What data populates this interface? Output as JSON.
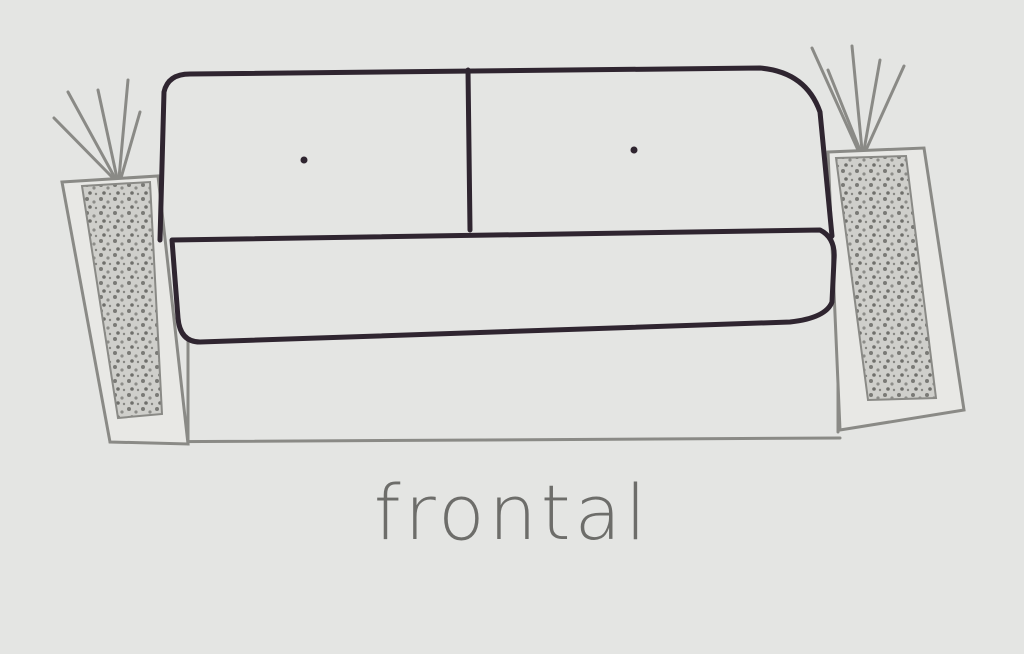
{
  "caption": "frontal",
  "colors": {
    "paper": "#e4e5e3",
    "ink_outline": "#2f2530",
    "pencil": "#8a8a86",
    "gravel": "#6e6e6a"
  },
  "scene": {
    "subject": "sofa",
    "planters": 2,
    "cushion_buttons": 2
  }
}
